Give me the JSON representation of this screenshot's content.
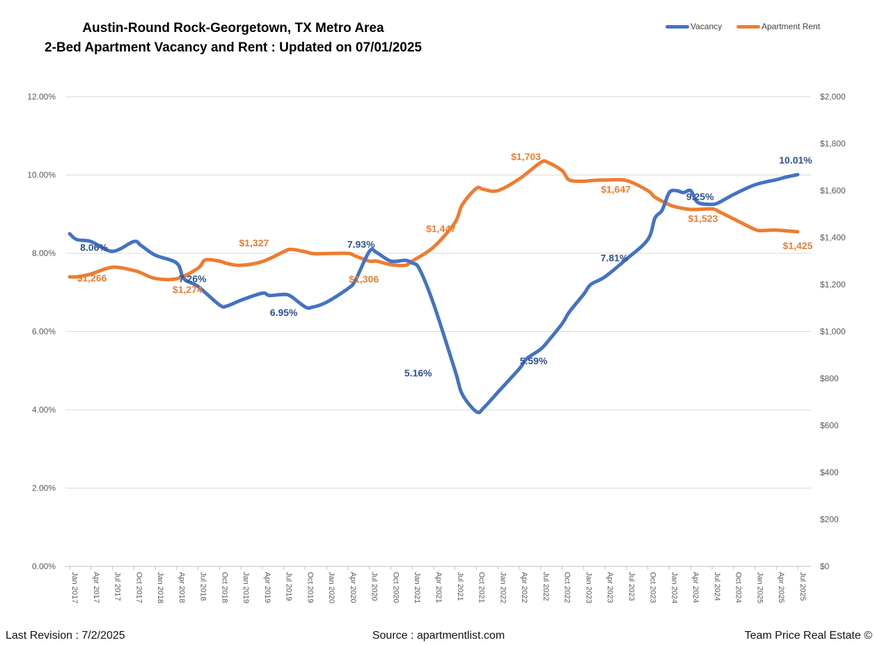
{
  "title_line1": "Austin-Round Rock-Georgetown, TX Metro Area",
  "title_line2": "2-Bed Apartment Vacancy and Rent : Updated on 07/01/2025",
  "footer": {
    "left": "Last Revision : 7/2/2025",
    "center": "Source : apartmentlist.com",
    "right": "Team Price Real Estate ©"
  },
  "colors": {
    "vacancy": "#4472C4",
    "rent": "#ED7D31",
    "grid": "#D9D9D9",
    "axis_text": "#595959",
    "vacancy_label": "#2F528F"
  },
  "chart_data": {
    "type": "line",
    "legend": [
      "Vacancy",
      "Apartment Rent"
    ],
    "legend_position": "top-right",
    "grid": true,
    "x_tick_labels": [
      "Jan 2017",
      "Apr 2017",
      "Jul 2017",
      "Oct 2017",
      "Jan 2018",
      "Apr 2018",
      "Jul 2018",
      "Oct 2018",
      "Jan 2019",
      "Apr 2019",
      "Jul 2019",
      "Oct 2019",
      "Jan 2020",
      "Apr 2020",
      "Jul 2020",
      "Oct 2020",
      "Jan 2021",
      "Apr 2021",
      "Jul 2021",
      "Oct 2021",
      "Jan 2022",
      "Apr 2022",
      "Jul 2022",
      "Oct 2022",
      "Jan 2023",
      "Apr 2023",
      "Jul 2023",
      "Oct 2023",
      "Jan 2024",
      "Apr 2024",
      "Jul 2024",
      "Oct 2024",
      "Jan 2025",
      "Apr 2025",
      "Jul 2025"
    ],
    "y_left": {
      "min": 0,
      "max": 12,
      "ticks": [
        "0.00%",
        "2.00%",
        "4.00%",
        "6.00%",
        "8.00%",
        "10.00%",
        "12.00%"
      ]
    },
    "y_right": {
      "min": 0,
      "max": 2000,
      "ticks": [
        "$0",
        "$200",
        "$400",
        "$600",
        "$800",
        "$1,000",
        "$1,200",
        "$1,400",
        "$1,600",
        "$1,800",
        "$2,000"
      ]
    },
    "series": [
      {
        "name": "Vacancy",
        "points": [
          [
            "Jan 2017",
            8.5
          ],
          [
            "Feb 2017",
            8.35
          ],
          [
            "Apr 2017",
            8.3
          ],
          [
            "Jul 2017",
            8.05
          ],
          [
            "Oct 2017",
            8.3
          ],
          [
            "Nov 2017",
            8.2
          ],
          [
            "Jan 2018",
            7.95
          ],
          [
            "Apr 2018",
            7.75
          ],
          [
            "May 2018",
            7.35
          ],
          [
            "Jul 2018",
            7.15
          ],
          [
            "Oct 2018",
            6.68
          ],
          [
            "Nov 2018",
            6.65
          ],
          [
            "Jan 2019",
            6.8
          ],
          [
            "Apr 2019",
            6.98
          ],
          [
            "May 2019",
            6.92
          ],
          [
            "Jul 2019",
            6.95
          ],
          [
            "Aug 2019",
            6.9
          ],
          [
            "Oct 2019",
            6.63
          ],
          [
            "Nov 2019",
            6.62
          ],
          [
            "Jan 2020",
            6.75
          ],
          [
            "Apr 2020",
            7.1
          ],
          [
            "May 2020",
            7.3
          ],
          [
            "Jul 2020",
            8.05
          ],
          [
            "Aug 2020",
            8.02
          ],
          [
            "Oct 2020",
            7.8
          ],
          [
            "Dec 2020",
            7.82
          ],
          [
            "Jan 2021",
            7.75
          ],
          [
            "Feb 2021",
            7.6
          ],
          [
            "Apr 2021",
            6.7
          ],
          [
            "Jul 2021",
            5.0
          ],
          [
            "Aug 2021",
            4.4
          ],
          [
            "Oct 2021",
            3.95
          ],
          [
            "Nov 2021",
            4.05
          ],
          [
            "Jan 2022",
            4.45
          ],
          [
            "Apr 2022",
            5.05
          ],
          [
            "May 2022",
            5.3
          ],
          [
            "Jul 2022",
            5.55
          ],
          [
            "Aug 2022",
            5.75
          ],
          [
            "Oct 2022",
            6.2
          ],
          [
            "Nov 2022",
            6.5
          ],
          [
            "Jan 2023",
            6.95
          ],
          [
            "Feb 2023",
            7.2
          ],
          [
            "Apr 2023",
            7.4
          ],
          [
            "Jul 2023",
            7.85
          ],
          [
            "Oct 2023",
            8.35
          ],
          [
            "Nov 2023",
            8.9
          ],
          [
            "Dec 2023",
            9.1
          ],
          [
            "Jan 2024",
            9.55
          ],
          [
            "Feb 2024",
            9.6
          ],
          [
            "Mar 2024",
            9.55
          ],
          [
            "Apr 2024",
            9.6
          ],
          [
            "May 2024",
            9.3
          ],
          [
            "Jul 2024",
            9.25
          ],
          [
            "Aug 2024",
            9.3
          ],
          [
            "Oct 2024",
            9.5
          ],
          [
            "Jan 2025",
            9.75
          ],
          [
            "Apr 2025",
            9.88
          ],
          [
            "May 2025",
            9.93
          ],
          [
            "Jul 2025",
            10.01
          ]
        ]
      },
      {
        "name": "Apartment Rent",
        "points": [
          [
            "Jan 2017",
            1233
          ],
          [
            "Feb 2017",
            1233
          ],
          [
            "Apr 2017",
            1245
          ],
          [
            "Jul 2017",
            1274
          ],
          [
            "Oct 2017",
            1260
          ],
          [
            "Nov 2017",
            1250
          ],
          [
            "Jan 2018",
            1226
          ],
          [
            "Apr 2018",
            1225
          ],
          [
            "Jul 2018",
            1270
          ],
          [
            "Aug 2018",
            1305
          ],
          [
            "Oct 2018",
            1300
          ],
          [
            "Nov 2018",
            1290
          ],
          [
            "Jan 2019",
            1282
          ],
          [
            "Apr 2019",
            1298
          ],
          [
            "Jul 2019",
            1340
          ],
          [
            "Aug 2019",
            1350
          ],
          [
            "Oct 2019",
            1340
          ],
          [
            "Nov 2019",
            1332
          ],
          [
            "Jan 2020",
            1332
          ],
          [
            "Apr 2020",
            1333
          ],
          [
            "May 2020",
            1322
          ],
          [
            "Jul 2020",
            1300
          ],
          [
            "Aug 2020",
            1300
          ],
          [
            "Oct 2020",
            1285
          ],
          [
            "Dec 2020",
            1282
          ],
          [
            "Jan 2021",
            1300
          ],
          [
            "Apr 2021",
            1360
          ],
          [
            "Jul 2021",
            1465
          ],
          [
            "Aug 2021",
            1540
          ],
          [
            "Oct 2021",
            1610
          ],
          [
            "Nov 2021",
            1605
          ],
          [
            "Jan 2022",
            1600
          ],
          [
            "Apr 2022",
            1650
          ],
          [
            "Jul 2022",
            1720
          ],
          [
            "Aug 2022",
            1720
          ],
          [
            "Oct 2022",
            1685
          ],
          [
            "Nov 2022",
            1645
          ],
          [
            "Jan 2023",
            1640
          ],
          [
            "Feb 2023",
            1643
          ],
          [
            "Apr 2023",
            1645
          ],
          [
            "Jul 2023",
            1643
          ],
          [
            "Oct 2023",
            1600
          ],
          [
            "Nov 2023",
            1572
          ],
          [
            "Jan 2024",
            1540
          ],
          [
            "Feb 2024",
            1530
          ],
          [
            "Apr 2024",
            1520
          ],
          [
            "Jul 2024",
            1522
          ],
          [
            "Aug 2024",
            1510
          ],
          [
            "Oct 2024",
            1480
          ],
          [
            "Jan 2025",
            1435
          ],
          [
            "Feb 2025",
            1430
          ],
          [
            "Apr 2025",
            1432
          ],
          [
            "Jul 2025",
            1425
          ]
        ]
      }
    ],
    "annotations": [
      {
        "series": "Vacancy",
        "text": "8.06%",
        "x": "May 2017",
        "y": 8.06
      },
      {
        "series": "Vacancy",
        "text": "7.26%",
        "x": "Jul 2018",
        "y": 7.26
      },
      {
        "series": "Vacancy",
        "text": "6.95%",
        "x": "Jul 2019",
        "y": 6.95
      },
      {
        "series": "Vacancy",
        "text": "7.93%",
        "x": "Jul 2020",
        "y": 7.93
      },
      {
        "series": "Vacancy",
        "text": "5.16%",
        "x": "Mar 2021",
        "y": 5.16
      },
      {
        "series": "Vacancy",
        "text": "5.59%",
        "x": "Jun 2022",
        "y": 5.59
      },
      {
        "series": "Vacancy",
        "text": "7.81%",
        "x": "Jun 2023",
        "y": 7.81
      },
      {
        "series": "Vacancy",
        "text": "9.25%",
        "x": "Jun 2024",
        "y": 9.25
      },
      {
        "series": "Vacancy",
        "text": "10.01%",
        "x": "Jul 2025",
        "y": 10.01
      },
      {
        "series": "Apartment Rent",
        "text": "$1,266",
        "x": "May 2017",
        "y": 1266
      },
      {
        "series": "Apartment Rent",
        "text": "$1,274",
        "x": "Jun 2018",
        "y": 1274
      },
      {
        "series": "Apartment Rent",
        "text": "$1,327",
        "x": "Apr 2019",
        "y": 1327
      },
      {
        "series": "Apartment Rent",
        "text": "$1,306",
        "x": "Jul 2020",
        "y": 1306
      },
      {
        "series": "Apartment Rent",
        "text": "$1,447",
        "x": "Jun 2021",
        "y": 1447
      },
      {
        "series": "Apartment Rent",
        "text": "$1,703",
        "x": "Jun 2022",
        "y": 1703
      },
      {
        "series": "Apartment Rent",
        "text": "$1,647",
        "x": "Jun 2023",
        "y": 1647
      },
      {
        "series": "Apartment Rent",
        "text": "$1,523",
        "x": "Jul 2024",
        "y": 1523
      },
      {
        "series": "Apartment Rent",
        "text": "$1,425",
        "x": "Jul 2025",
        "y": 1425
      }
    ]
  }
}
